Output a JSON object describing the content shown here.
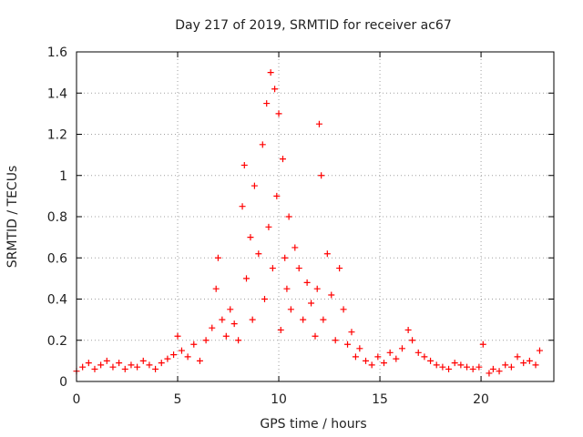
{
  "chart_data": {
    "type": "scatter",
    "title": "Day 217 of 2019, SRMTID for receiver ac67",
    "xlabel": "GPS time / hours",
    "ylabel": "SRMTID / TECUs",
    "xlim": [
      0,
      23.6
    ],
    "ylim": [
      0,
      1.6
    ],
    "x_ticks": [
      0,
      5,
      10,
      15,
      20
    ],
    "x_tick_labels": [
      "0",
      "5",
      "10",
      "15",
      "20"
    ],
    "y_ticks": [
      0,
      0.2,
      0.4,
      0.6,
      0.8,
      1.0,
      1.2,
      1.4,
      1.6
    ],
    "y_tick_labels": [
      "0",
      "0.2",
      "0.4",
      "0.6",
      "0.8",
      "1",
      "1.2",
      "1.4",
      "1.6"
    ],
    "grid": true,
    "marker": "plus",
    "color": "#ff0000",
    "series": [
      {
        "name": "SRMTID",
        "x": [
          0.0,
          0.3,
          0.6,
          0.9,
          1.2,
          1.5,
          1.8,
          2.1,
          2.4,
          2.7,
          3.0,
          3.3,
          3.6,
          3.9,
          4.2,
          4.5,
          4.8,
          5.0,
          5.2,
          5.5,
          5.8,
          6.1,
          6.4,
          6.7,
          6.9,
          7.0,
          7.2,
          7.4,
          7.6,
          7.8,
          8.0,
          8.2,
          8.3,
          8.4,
          8.6,
          8.7,
          8.8,
          9.0,
          9.2,
          9.3,
          9.4,
          9.5,
          9.6,
          9.7,
          9.8,
          9.9,
          10.0,
          10.1,
          10.2,
          10.3,
          10.4,
          10.5,
          10.6,
          10.8,
          11.0,
          11.2,
          11.4,
          11.6,
          11.8,
          11.9,
          12.0,
          12.1,
          12.2,
          12.4,
          12.6,
          12.8,
          13.0,
          13.2,
          13.4,
          13.6,
          13.8,
          14.0,
          14.3,
          14.6,
          14.9,
          15.2,
          15.5,
          15.8,
          16.1,
          16.4,
          16.6,
          16.9,
          17.2,
          17.5,
          17.8,
          18.1,
          18.4,
          18.7,
          19.0,
          19.3,
          19.6,
          19.9,
          20.1,
          20.4,
          20.6,
          20.9,
          21.2,
          21.5,
          21.8,
          22.1,
          22.4,
          22.7,
          22.9
        ],
        "y": [
          0.05,
          0.07,
          0.09,
          0.06,
          0.08,
          0.1,
          0.07,
          0.09,
          0.06,
          0.08,
          0.07,
          0.1,
          0.08,
          0.06,
          0.09,
          0.11,
          0.13,
          0.22,
          0.15,
          0.12,
          0.18,
          0.1,
          0.2,
          0.26,
          0.45,
          0.6,
          0.3,
          0.22,
          0.35,
          0.28,
          0.2,
          0.85,
          1.05,
          0.5,
          0.7,
          0.3,
          0.95,
          0.62,
          1.15,
          0.4,
          1.35,
          0.75,
          1.5,
          0.55,
          1.42,
          0.9,
          1.3,
          0.25,
          1.08,
          0.6,
          0.45,
          0.8,
          0.35,
          0.65,
          0.55,
          0.3,
          0.48,
          0.38,
          0.22,
          0.45,
          1.25,
          1.0,
          0.3,
          0.62,
          0.42,
          0.2,
          0.55,
          0.35,
          0.18,
          0.24,
          0.12,
          0.16,
          0.1,
          0.08,
          0.12,
          0.09,
          0.14,
          0.11,
          0.16,
          0.25,
          0.2,
          0.14,
          0.12,
          0.1,
          0.08,
          0.07,
          0.06,
          0.09,
          0.08,
          0.07,
          0.06,
          0.07,
          0.18,
          0.04,
          0.06,
          0.05,
          0.08,
          0.07,
          0.12,
          0.09,
          0.1,
          0.08,
          0.15
        ]
      }
    ]
  }
}
